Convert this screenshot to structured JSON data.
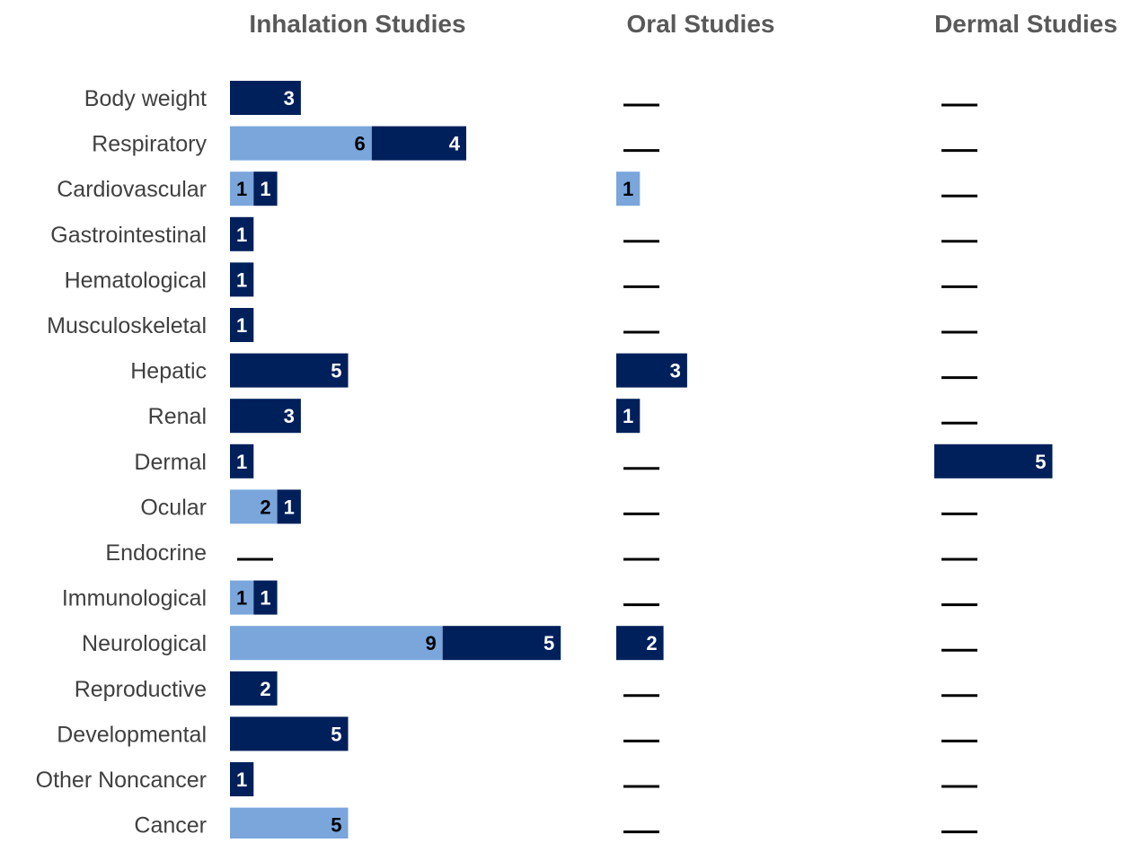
{
  "chart_data": {
    "type": "bar",
    "orientation": "horizontal",
    "stacked": true,
    "categories": [
      "Body weight",
      "Respiratory",
      "Cardiovascular",
      "Gastrointestinal",
      "Hematological",
      "Musculoskeletal",
      "Hepatic",
      "Renal",
      "Dermal",
      "Ocular",
      "Endocrine",
      "Immunological",
      "Neurological",
      "Reproductive",
      "Developmental",
      "Other Noncancer",
      "Cancer"
    ],
    "colors": {
      "light": "#7aa6dc",
      "dark": "#00205b",
      "dash": "#000000",
      "label_on_light": "#000000",
      "label_on_dark": "#ffffff"
    },
    "no_data_marker": "dash",
    "grid": false,
    "legend": "none",
    "panels": [
      {
        "title": "Inhalation Studies",
        "series": [
          {
            "color_key": "light",
            "values": [
              0,
              6,
              1,
              0,
              0,
              0,
              0,
              0,
              0,
              2,
              0,
              1,
              9,
              0,
              0,
              0,
              5
            ]
          },
          {
            "color_key": "dark",
            "values": [
              3,
              4,
              1,
              1,
              1,
              1,
              5,
              3,
              1,
              1,
              0,
              1,
              5,
              2,
              5,
              1,
              0
            ]
          }
        ]
      },
      {
        "title": "Oral Studies",
        "series": [
          {
            "color_key": "light",
            "values": [
              0,
              0,
              1,
              0,
              0,
              0,
              0,
              0,
              0,
              0,
              0,
              0,
              0,
              0,
              0,
              0,
              0
            ]
          },
          {
            "color_key": "dark",
            "values": [
              0,
              0,
              0,
              0,
              0,
              0,
              3,
              1,
              0,
              0,
              0,
              0,
              2,
              0,
              0,
              0,
              0
            ]
          }
        ]
      },
      {
        "title": "Dermal Studies",
        "series": [
          {
            "color_key": "light",
            "values": [
              0,
              0,
              0,
              0,
              0,
              0,
              0,
              0,
              0,
              0,
              0,
              0,
              0,
              0,
              0,
              0,
              0
            ]
          },
          {
            "color_key": "dark",
            "values": [
              0,
              0,
              0,
              0,
              0,
              0,
              0,
              0,
              5,
              0,
              0,
              0,
              0,
              0,
              0,
              0,
              0
            ]
          }
        ]
      }
    ]
  }
}
